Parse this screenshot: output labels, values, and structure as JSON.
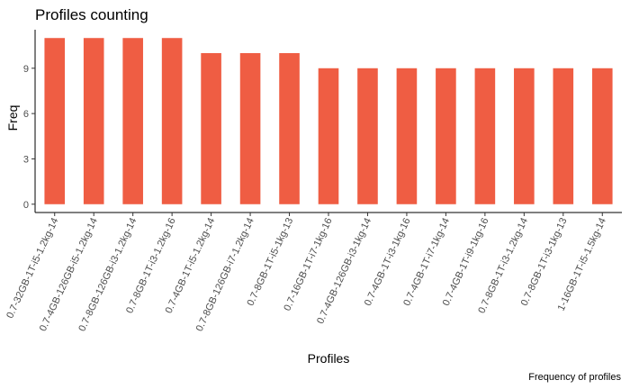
{
  "chart_data": {
    "type": "bar",
    "title": "Profiles counting",
    "xlabel": "Profiles",
    "ylabel": "Freq",
    "caption": "Frequency of profiles",
    "categories": [
      "0.7-32GB-1T-i5-1.2kg-14",
      "0.7-4GB-126GB-i5-1.2kg-14",
      "0.7-8GB-126GB-i3-1.2kg-14",
      "0.7-8GB-1T-i3-1.2kg-16",
      "0.7-4GB-1T-i5-1.2kg-14",
      "0.7-8GB-126GB-i7-1.2kg-14",
      "0.7-8GB-1T-i5-1kg-13",
      "0.7-16GB-1T-i7-1kg-16",
      "0.7-4GB-126GB-i3-1kg-14",
      "0.7-4GB-1T-i3-1kg-16",
      "0.7-4GB-1T-i7-1kg-14",
      "0.7-4GB-1T-i9-1kg-16",
      "0.7-8GB-1T-i3-1.2kg-14",
      "0.7-8GB-1T-i3-1kg-13",
      "1-16GB-1T-i5-1.5kg-14"
    ],
    "values": [
      11,
      11,
      11,
      11,
      10,
      10,
      10,
      9,
      9,
      9,
      9,
      9,
      9,
      9,
      9
    ],
    "yticks": [
      0,
      3,
      6,
      9
    ],
    "ylim": [
      -0.55,
      11.55
    ],
    "bar_color": "#EF5D43",
    "grid": false,
    "legend": "none"
  }
}
